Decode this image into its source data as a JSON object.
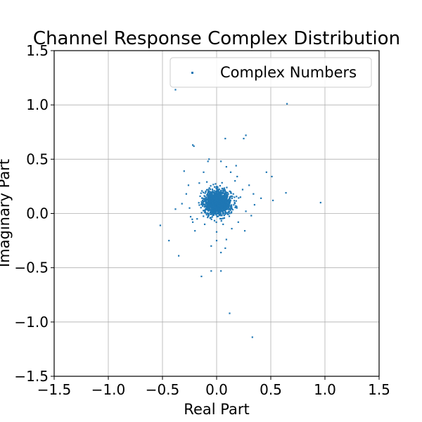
{
  "chart_data": {
    "type": "scatter",
    "title": "Channel Response Complex Distribution",
    "xlabel": "Real Part",
    "ylabel": "Imaginary Part",
    "xlim": [
      -1.5,
      1.5
    ],
    "ylim": [
      -1.5,
      1.5
    ],
    "xticks": [
      -1.5,
      -1.0,
      -0.5,
      0.0,
      0.5,
      1.0,
      1.5
    ],
    "yticks": [
      -1.5,
      -1.0,
      -0.5,
      0.0,
      0.5,
      1.0,
      1.5
    ],
    "xtick_labels": [
      "−1.5",
      "−1.0",
      "−0.5",
      "0.0",
      "0.5",
      "1.0",
      "1.5"
    ],
    "ytick_labels": [
      "−1.5",
      "−1.0",
      "−0.5",
      "0.0",
      "0.5",
      "1.0",
      "1.5"
    ],
    "grid": true,
    "legend_position": "top-right",
    "marker_color": "#1f77b4",
    "series": [
      {
        "name": "Complex Numbers",
        "color": "#1f77b4",
        "core_cluster": {
          "center": [
            0.01,
            0.1
          ],
          "spread_real": 0.06,
          "spread_imag": 0.055,
          "count": 1500
        },
        "points": [
          [
            -0.38,
            1.14
          ],
          [
            0.65,
            1.01
          ],
          [
            -0.22,
            0.63
          ],
          [
            -0.21,
            0.62
          ],
          [
            0.08,
            0.69
          ],
          [
            0.27,
            0.72
          ],
          [
            0.25,
            0.69
          ],
          [
            -0.07,
            0.5
          ],
          [
            -0.08,
            0.48
          ],
          [
            0.04,
            0.48
          ],
          [
            0.09,
            0.43
          ],
          [
            -0.3,
            0.39
          ],
          [
            0.46,
            0.38
          ],
          [
            0.51,
            0.34
          ],
          [
            0.64,
            0.19
          ],
          [
            0.96,
            0.1
          ],
          [
            -0.52,
            -0.11
          ],
          [
            -0.44,
            -0.25
          ],
          [
            -0.38,
            0.04
          ],
          [
            -0.35,
            -0.39
          ],
          [
            -0.14,
            -0.58
          ],
          [
            -0.05,
            -0.53
          ],
          [
            0.04,
            -0.53
          ],
          [
            0.12,
            -0.92
          ],
          [
            0.33,
            -1.14
          ],
          [
            0.04,
            -0.36
          ],
          [
            -0.05,
            -0.3
          ],
          [
            0.0,
            -0.25
          ],
          [
            0.35,
            0.08
          ],
          [
            0.52,
            0.12
          ],
          [
            0.41,
            0.14
          ],
          [
            0.34,
            0.18
          ],
          [
            0.26,
            -0.16
          ],
          [
            -0.22,
            -0.08
          ],
          [
            -0.26,
            0.26
          ],
          [
            0.18,
            0.44
          ],
          [
            0.13,
            0.38
          ],
          [
            -0.12,
            0.38
          ],
          [
            0.09,
            -0.24
          ],
          [
            -0.18,
            -0.05
          ],
          [
            0.24,
            0.22
          ],
          [
            0.2,
            -0.08
          ],
          [
            0.22,
            0.15
          ],
          [
            -0.25,
            0.05
          ],
          [
            -0.24,
            -0.03
          ],
          [
            0.17,
            0.3
          ],
          [
            -0.11,
            -0.1
          ],
          [
            0.0,
            -0.17
          ],
          [
            0.27,
            0.02
          ],
          [
            -0.28,
            0.18
          ],
          [
            -0.16,
            0.28
          ],
          [
            0.14,
            -0.14
          ],
          [
            0.06,
            -0.1
          ],
          [
            -0.09,
            0.29
          ],
          [
            0.32,
            -0.02
          ],
          [
            -0.32,
            0.09
          ],
          [
            0.08,
            -0.32
          ],
          [
            -0.2,
            -0.16
          ],
          [
            0.3,
            0.26
          ],
          [
            0.19,
            0.34
          ]
        ]
      }
    ]
  }
}
